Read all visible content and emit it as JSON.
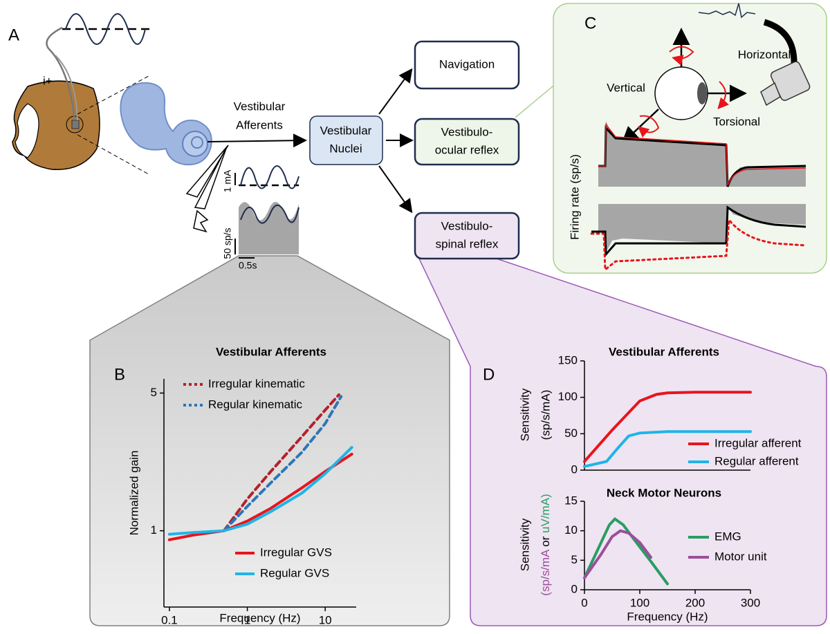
{
  "panel_a": {
    "label": "A",
    "electrode": "i+",
    "afferents": [
      "Vestibular",
      "Afferents"
    ],
    "current_scale": "1 mA",
    "rate_scale": "50 sp/s",
    "time_scale": "0.5s"
  },
  "boxes": {
    "nuclei": [
      "Vestibular",
      "Nuclei"
    ],
    "navigation": "Navigation",
    "vor": [
      "Vestibulo-",
      "ocular reflex"
    ],
    "vsr": [
      "Vestibulo-",
      "spinal reflex"
    ]
  },
  "panel_c": {
    "label": "C",
    "horizontal": "Horizontal",
    "vertical": "Vertical",
    "torsional": "Torsional",
    "ylabel": "Firing rate (sp/s)"
  },
  "panel_b_label": "B",
  "panel_d_label": "D",
  "chart_data": [
    {
      "type": "line",
      "title": "Vestibular Afferents",
      "xlabel": "Frequency (Hz)",
      "ylabel": [
        "Normalized gain"
      ],
      "xlog": true,
      "ylog": true,
      "xlim": [
        0.085,
        25
      ],
      "ylim": [
        0.41,
        5.9
      ],
      "xticks": [
        0.1,
        1,
        10
      ],
      "yticks": [
        1,
        5
      ],
      "series": [
        {
          "name": "Irregular kinematic",
          "color": "#b2222a",
          "dash": true,
          "x": [
            0.5,
            1,
            2,
            5,
            10,
            15
          ],
          "values": [
            1.0,
            1.45,
            2.0,
            3.0,
            4.1,
            4.9
          ]
        },
        {
          "name": "Regular kinematic",
          "color": "#2e75b6",
          "dash": true,
          "x": [
            0.5,
            1,
            2,
            5,
            10,
            16
          ],
          "values": [
            1.0,
            1.33,
            1.75,
            2.5,
            3.5,
            4.8
          ]
        },
        {
          "name": "Irregular GVS",
          "color": "#e8141c",
          "dash": false,
          "x": [
            0.1,
            0.2,
            0.5,
            1,
            2,
            5,
            10,
            22
          ],
          "values": [
            0.9,
            0.95,
            1.0,
            1.12,
            1.3,
            1.65,
            2.0,
            2.45
          ]
        },
        {
          "name": "Regular GVS",
          "color": "#1fb4e8",
          "dash": false,
          "x": [
            0.1,
            0.2,
            0.5,
            1,
            2,
            5,
            10,
            22
          ],
          "values": [
            0.96,
            0.98,
            1.0,
            1.08,
            1.25,
            1.55,
            1.95,
            2.65
          ]
        }
      ]
    },
    {
      "type": "line",
      "title": "Vestibular Afferents",
      "ylabel": [
        "Sensitivity",
        "(sp/s/mA)"
      ],
      "xlim": [
        0,
        300
      ],
      "ylim": [
        0,
        150
      ],
      "yticks": [
        0,
        50,
        100,
        150
      ],
      "series": [
        {
          "name": "Irregular afferent",
          "color": "#e8141c",
          "dash": false,
          "x": [
            0,
            50,
            100,
            130,
            150,
            200,
            300
          ],
          "values": [
            12,
            55,
            95,
            104,
            106,
            107,
            107
          ]
        },
        {
          "name": "Regular afferent",
          "color": "#1fb4e8",
          "dash": false,
          "x": [
            0,
            40,
            60,
            80,
            100,
            150,
            300
          ],
          "values": [
            5,
            12,
            30,
            47,
            51,
            53,
            53
          ]
        }
      ]
    },
    {
      "type": "line",
      "title": "Neck Motor Neurons",
      "xlabel": "Frequency (Hz)",
      "ylabel": [
        "Sensitivity",
        [
          {
            "text": "(sp/s/mA",
            "color": "#9b4f9b"
          },
          {
            "text": "or",
            "color": "#000000"
          },
          {
            "text": "uV/mA)",
            "color": "#2a9d61"
          }
        ]
      ],
      "xlim": [
        0,
        300
      ],
      "ylim": [
        0,
        15
      ],
      "xticks": [
        0,
        100,
        200,
        300
      ],
      "yticks": [
        0,
        5,
        10,
        15
      ],
      "series": [
        {
          "name": "EMG",
          "color": "#2a9d61",
          "dash": false,
          "x": [
            0,
            25,
            45,
            55,
            70,
            90,
            120,
            150
          ],
          "values": [
            2,
            7,
            11,
            12,
            11,
            8.5,
            4.8,
            1
          ]
        },
        {
          "name": "Motor unit",
          "color": "#9b4f9b",
          "dash": false,
          "x": [
            0,
            30,
            50,
            65,
            80,
            100,
            120
          ],
          "values": [
            2,
            6,
            9,
            10,
            9.6,
            8,
            5.5
          ]
        }
      ]
    }
  ]
}
